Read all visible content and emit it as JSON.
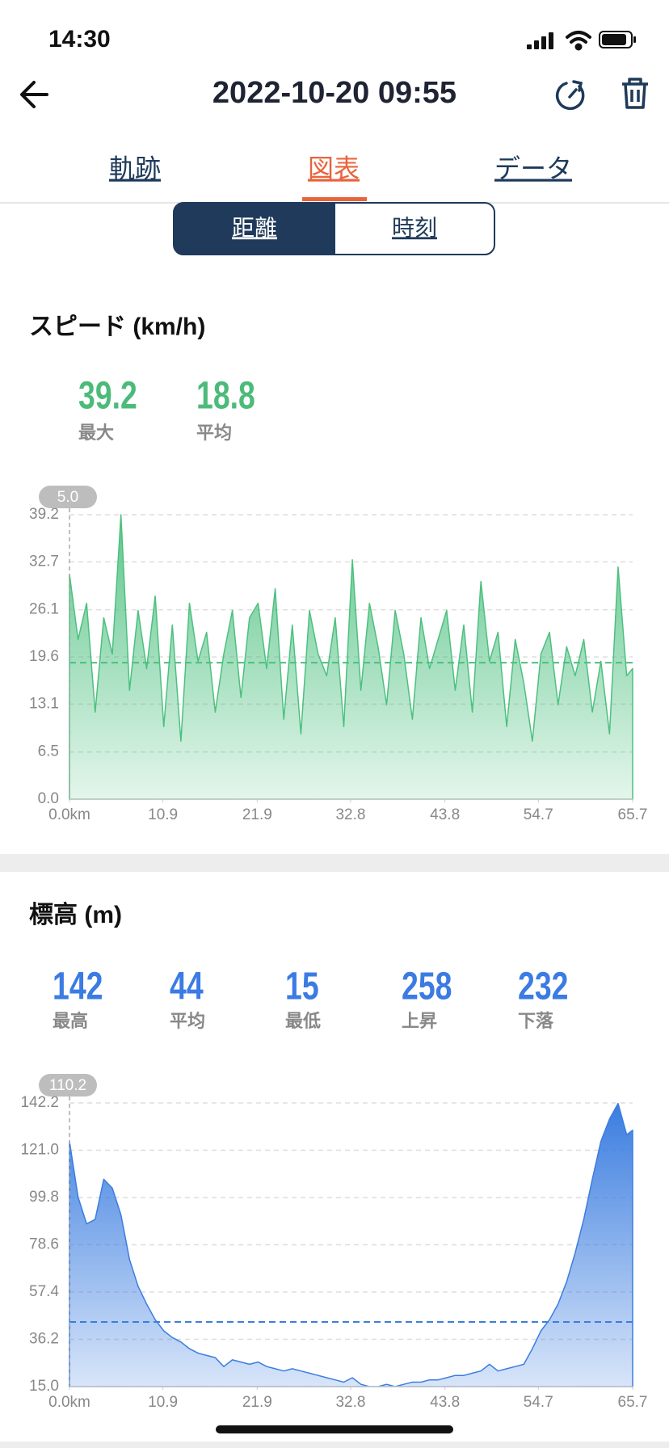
{
  "status": {
    "time": "14:30"
  },
  "header": {
    "title": "2022-10-20 09:55"
  },
  "tabs": [
    "軌跡",
    "図表",
    "データ"
  ],
  "segments": [
    "距離",
    "時刻"
  ],
  "chart_data": [
    {
      "type": "area",
      "title": "スピード (km/h)",
      "stats": [
        {
          "value": 39.2,
          "label": "最大"
        },
        {
          "value": 18.8,
          "label": "平均"
        }
      ],
      "cursor": {
        "value": 5,
        "label": "5.0"
      },
      "x": [
        0,
        1,
        2,
        3,
        4,
        5,
        6,
        7,
        8,
        9,
        10,
        11,
        12,
        13,
        14,
        15,
        16,
        17,
        18,
        19,
        20,
        21,
        22,
        23,
        24,
        25,
        26,
        27,
        28,
        29,
        30,
        31,
        32,
        33,
        34,
        35,
        36,
        37,
        38,
        39,
        40,
        41,
        42,
        43,
        44,
        45,
        46,
        47,
        48,
        49,
        50,
        51,
        52,
        53,
        54,
        55,
        56,
        57,
        58,
        59,
        60,
        61,
        62,
        63,
        64,
        65,
        65.7
      ],
      "values": [
        31,
        22,
        27,
        12,
        25,
        20,
        39.2,
        15,
        26,
        18,
        28,
        10,
        24,
        8,
        27,
        19,
        23,
        12,
        20,
        26,
        14,
        25,
        27,
        18,
        29,
        11,
        24,
        9,
        26,
        20,
        17,
        25,
        10,
        33,
        15,
        27,
        21,
        13,
        26,
        20,
        11,
        25,
        18,
        22,
        26,
        15,
        24,
        12,
        30,
        19,
        23,
        10,
        22,
        16,
        8,
        20,
        23,
        13,
        21,
        17,
        22,
        12,
        19,
        9,
        32,
        17,
        18
      ],
      "color": "#4cc07f",
      "stat_color": "#4cbb7a",
      "xlim": [
        0,
        65.7
      ],
      "ylim": [
        0,
        39.2
      ],
      "xticks": [
        {
          "value": 0,
          "label": "0.0km"
        },
        10.9,
        21.9,
        32.8,
        43.8,
        54.7,
        65.7
      ],
      "yticks": [
        {
          "value": 0,
          "label": "0.0"
        },
        6.5,
        13.1,
        19.6,
        26.1,
        32.7,
        39.2
      ],
      "grid": true
    },
    {
      "type": "area",
      "title": "標高 (m)",
      "stats": [
        {
          "value": 142,
          "label": "最高"
        },
        {
          "value": 44,
          "label": "平均"
        },
        {
          "value": 15,
          "label": "最低"
        },
        {
          "value": 258,
          "label": "上昇"
        },
        {
          "value": 232,
          "label": "下落"
        }
      ],
      "cursor": 110.2,
      "x": [
        0,
        1,
        2,
        3,
        4,
        5,
        6,
        7,
        8,
        9,
        10,
        11,
        12,
        13,
        14,
        15,
        16,
        17,
        18,
        19,
        20,
        21,
        22,
        23,
        24,
        25,
        26,
        27,
        28,
        29,
        30,
        31,
        32,
        33,
        34,
        35,
        36,
        37,
        38,
        39,
        40,
        41,
        42,
        43,
        44,
        45,
        46,
        47,
        48,
        49,
        50,
        51,
        52,
        53,
        54,
        55,
        56,
        57,
        58,
        59,
        60,
        61,
        62,
        63,
        64,
        65,
        65.7
      ],
      "values": [
        125,
        100,
        88,
        90,
        108,
        104,
        92,
        72,
        60,
        52,
        45,
        40,
        37,
        35,
        32,
        30,
        29,
        28,
        24,
        27,
        26,
        25,
        26,
        24,
        23,
        22,
        23,
        22,
        21,
        20,
        19,
        18,
        17,
        19,
        16,
        15,
        15,
        16,
        15,
        16,
        17,
        17,
        18,
        18,
        19,
        20,
        20,
        21,
        22,
        25,
        22,
        23,
        24,
        25,
        32,
        40,
        45,
        52,
        62,
        75,
        90,
        108,
        125,
        135,
        142,
        128,
        130
      ],
      "color": "#3b7de0",
      "stat_color": "#3b7be3",
      "xlim": [
        0,
        65.7
      ],
      "ylim": [
        15,
        142.2
      ],
      "xticks": [
        {
          "value": 0,
          "label": "0.0km"
        },
        10.9,
        21.9,
        32.8,
        43.8,
        54.7,
        65.7
      ],
      "yticks": [
        {
          "value": 15,
          "label": "15.0"
        },
        36.2,
        57.4,
        78.6,
        99.8,
        {
          "value": 121,
          "label": "121.0"
        },
        142.2
      ],
      "grid": true
    }
  ]
}
